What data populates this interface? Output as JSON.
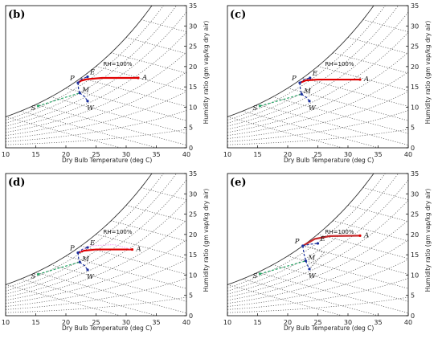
{
  "chart_data": [
    {
      "type": "line",
      "panel": "(b)",
      "xlabel": "Dry Bulb Temperature (deg C)",
      "ylabel": "Humidity ratio (gm vap/kg dry air)",
      "xlim": [
        10,
        40
      ],
      "ylim": [
        0,
        35
      ],
      "xticks": [
        10,
        15,
        20,
        25,
        30,
        35,
        40
      ],
      "yticks": [
        0,
        5,
        10,
        15,
        20,
        25,
        30,
        35
      ],
      "rh_label": "RH=100%",
      "points": [
        {
          "label": "A",
          "x": 32.0,
          "y": 17.2
        },
        {
          "label": "P",
          "x": 22.0,
          "y": 16.0
        },
        {
          "label": "E",
          "x": 23.6,
          "y": 17.5
        },
        {
          "label": "M",
          "x": 22.3,
          "y": 13.5
        },
        {
          "label": "W",
          "x": 23.6,
          "y": 11.5
        },
        {
          "label": "S",
          "x": 15.4,
          "y": 10.3
        }
      ],
      "series": [
        {
          "name": "",
          "color": "#e00000",
          "style": "solid",
          "path": [
            [
              32.0,
              17.2
            ],
            [
              26.0,
              17.2
            ],
            [
              23.5,
              16.9
            ],
            [
              22.5,
              16.5
            ],
            [
              22.0,
              16.0
            ]
          ]
        },
        {
          "name": "",
          "color": "#1a2f9c",
          "style": "dashed",
          "path": [
            [
              22.0,
              16.0
            ],
            [
              22.6,
              16.9
            ],
            [
              23.6,
              17.5
            ]
          ]
        },
        {
          "name": "",
          "color": "#1a2f9c",
          "style": "dashed",
          "path": [
            [
              22.0,
              16.0
            ],
            [
              22.1,
              14.5
            ],
            [
              22.3,
              13.5
            ]
          ]
        },
        {
          "name": "",
          "color": "#1a2f9c",
          "style": "dashed",
          "path": [
            [
              22.3,
              13.5
            ],
            [
              23.1,
              12.6
            ],
            [
              23.6,
              11.5
            ]
          ]
        },
        {
          "name": "",
          "color": "#2ea86b",
          "style": "dashed",
          "path": [
            [
              15.4,
              10.3
            ],
            [
              19.0,
              12.0
            ],
            [
              22.3,
              13.5
            ]
          ]
        }
      ]
    },
    {
      "type": "line",
      "panel": "(c)",
      "xlabel": "Dry Bulb Temperature (deg C)",
      "ylabel": "Humidity ratio (gm vap/kg dry air)",
      "xlim": [
        10,
        40
      ],
      "ylim": [
        0,
        35
      ],
      "xticks": [
        10,
        15,
        20,
        25,
        30,
        35,
        40
      ],
      "yticks": [
        0,
        5,
        10,
        15,
        20,
        25,
        30,
        35
      ],
      "rh_label": "RH=100%",
      "points": [
        {
          "label": "A",
          "x": 32.0,
          "y": 16.8
        },
        {
          "label": "P",
          "x": 22.0,
          "y": 16.0
        },
        {
          "label": "E",
          "x": 23.7,
          "y": 17.2
        },
        {
          "label": "M",
          "x": 22.3,
          "y": 13.2
        },
        {
          "label": "W",
          "x": 23.6,
          "y": 11.5
        },
        {
          "label": "S",
          "x": 15.4,
          "y": 10.3
        }
      ],
      "series": [
        {
          "name": "",
          "color": "#e00000",
          "style": "solid",
          "path": [
            [
              32.0,
              16.8
            ],
            [
              25.0,
              16.8
            ],
            [
              23.0,
              16.6
            ],
            [
              22.0,
              16.0
            ]
          ]
        },
        {
          "name": "",
          "color": "#1a2f9c",
          "style": "dashed",
          "path": [
            [
              22.0,
              16.0
            ],
            [
              22.7,
              16.8
            ],
            [
              23.7,
              17.2
            ]
          ]
        },
        {
          "name": "",
          "color": "#1a2f9c",
          "style": "dashed",
          "path": [
            [
              22.0,
              16.0
            ],
            [
              22.1,
              14.4
            ],
            [
              22.3,
              13.2
            ]
          ]
        },
        {
          "name": "",
          "color": "#1a2f9c",
          "style": "dashed",
          "path": [
            [
              22.3,
              13.2
            ],
            [
              23.1,
              12.4
            ],
            [
              23.6,
              11.5
            ]
          ]
        },
        {
          "name": "",
          "color": "#2ea86b",
          "style": "dashed",
          "path": [
            [
              15.4,
              10.3
            ],
            [
              19.0,
              11.8
            ],
            [
              22.3,
              13.2
            ]
          ]
        }
      ]
    },
    {
      "type": "line",
      "panel": "(d)",
      "xlabel": "Dry Bulb Temperature (deg C)",
      "ylabel": "Humidity ratio (gm vap/kg dry air)",
      "xlim": [
        10,
        40
      ],
      "ylim": [
        0,
        35
      ],
      "xticks": [
        10,
        15,
        20,
        25,
        30,
        35,
        40
      ],
      "yticks": [
        0,
        5,
        10,
        15,
        20,
        25,
        30,
        35
      ],
      "rh_label": "RH=100%",
      "points": [
        {
          "label": "A",
          "x": 31.0,
          "y": 16.3
        },
        {
          "label": "P",
          "x": 22.0,
          "y": 15.5
        },
        {
          "label": "E",
          "x": 23.6,
          "y": 16.8
        },
        {
          "label": "M",
          "x": 22.3,
          "y": 13.2
        },
        {
          "label": "W",
          "x": 23.6,
          "y": 11.3
        },
        {
          "label": "S",
          "x": 15.4,
          "y": 10.2
        }
      ],
      "series": [
        {
          "name": "",
          "color": "#e00000",
          "style": "solid",
          "path": [
            [
              31.0,
              16.3
            ],
            [
              25.0,
              16.3
            ],
            [
              23.0,
              16.0
            ],
            [
              22.0,
              15.5
            ]
          ]
        },
        {
          "name": "",
          "color": "#1a2f9c",
          "style": "dashed",
          "path": [
            [
              22.0,
              15.5
            ],
            [
              22.7,
              16.3
            ],
            [
              23.6,
              16.8
            ]
          ]
        },
        {
          "name": "",
          "color": "#1a2f9c",
          "style": "dashed",
          "path": [
            [
              22.0,
              15.5
            ],
            [
              22.1,
              14.2
            ],
            [
              22.3,
              13.2
            ]
          ]
        },
        {
          "name": "",
          "color": "#1a2f9c",
          "style": "dashed",
          "path": [
            [
              22.3,
              13.2
            ],
            [
              23.1,
              12.3
            ],
            [
              23.6,
              11.3
            ]
          ]
        },
        {
          "name": "",
          "color": "#2ea86b",
          "style": "dashed",
          "path": [
            [
              15.4,
              10.2
            ],
            [
              19.0,
              11.8
            ],
            [
              22.3,
              13.2
            ]
          ]
        },
        {
          "name": "",
          "color": "#f2a9f2",
          "style": "dotted",
          "path": [
            [
              31.0,
              16.3
            ],
            [
              28.0,
              17.5
            ],
            [
              24.0,
              17.2
            ],
            [
              22.0,
              15.5
            ]
          ]
        }
      ]
    },
    {
      "type": "line",
      "panel": "(e)",
      "xlabel": "Dry Bulb Temperature (deg C)",
      "ylabel": "Humidity ratio (gm vap/kg dry air)",
      "xlim": [
        10,
        40
      ],
      "ylim": [
        0,
        35
      ],
      "xticks": [
        10,
        15,
        20,
        25,
        30,
        35,
        40
      ],
      "yticks": [
        0,
        5,
        10,
        15,
        20,
        25,
        30,
        35
      ],
      "rh_label": "RH=100%",
      "points": [
        {
          "label": "A",
          "x": 32.0,
          "y": 19.7
        },
        {
          "label": "P",
          "x": 22.5,
          "y": 17.2
        },
        {
          "label": "E",
          "x": 25.0,
          "y": 17.8
        },
        {
          "label": "M",
          "x": 23.0,
          "y": 13.5
        },
        {
          "label": "W",
          "x": 23.6,
          "y": 11.5
        },
        {
          "label": "S",
          "x": 15.4,
          "y": 10.3
        }
      ],
      "series": [
        {
          "name": "",
          "color": "#c6282a",
          "style": "solid",
          "path": [
            [
              32.0,
              19.7
            ],
            [
              27.0,
              19.6
            ],
            [
              24.5,
              18.9
            ],
            [
              22.5,
              17.2
            ]
          ]
        },
        {
          "name": "",
          "color": "#1a2f9c",
          "style": "dashed",
          "path": [
            [
              22.5,
              17.2
            ],
            [
              23.7,
              17.6
            ],
            [
              25.0,
              17.8
            ]
          ]
        },
        {
          "name": "",
          "color": "#1a2f9c",
          "style": "dashed",
          "path": [
            [
              22.5,
              17.2
            ],
            [
              22.7,
              15.2
            ],
            [
              23.0,
              13.5
            ]
          ]
        },
        {
          "name": "",
          "color": "#1a2f9c",
          "style": "dashed",
          "path": [
            [
              23.0,
              13.5
            ],
            [
              23.3,
              12.4
            ],
            [
              23.6,
              11.5
            ]
          ]
        },
        {
          "name": "",
          "color": "#2ea86b",
          "style": "dashed",
          "path": [
            [
              15.4,
              10.3
            ],
            [
              19.2,
              11.9
            ],
            [
              23.0,
              13.5
            ]
          ]
        },
        {
          "name": "",
          "color": "#7a7a7a",
          "style": "dotted",
          "path": [
            [
              22.5,
              17.2
            ],
            [
              24.5,
              16.5
            ],
            [
              26.0,
              15.5
            ],
            [
              25.0,
              13.8
            ],
            [
              23.6,
              11.5
            ]
          ]
        }
      ]
    }
  ]
}
